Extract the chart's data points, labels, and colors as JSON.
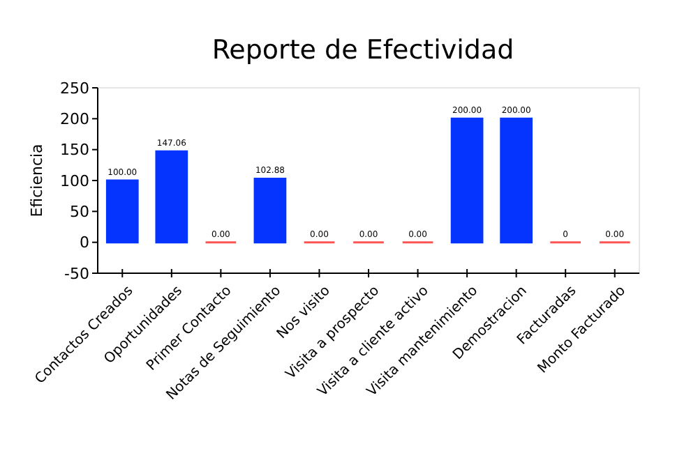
{
  "chart_data": {
    "type": "bar",
    "title": "Reporte de Efectividad",
    "ylabel": "Eficiencia",
    "categories": [
      "Contactos Creados",
      "Oportunidades",
      "Primer Contacto",
      "Notas de Seguimiento",
      "Nos visito",
      "Visita a prospecto",
      "Visita a cliente activo",
      "Visita mantenimiento",
      "Demostracion",
      "Facturadas",
      "Monto Facturado"
    ],
    "values": [
      100,
      147.06,
      0,
      102.88,
      0,
      0,
      0,
      200,
      200,
      0,
      0
    ],
    "colors": [
      "#0533ff",
      "#0533ff",
      "#ff5555",
      "#0533ff",
      "#ff5555",
      "#ff5555",
      "#ff5555",
      "#0533ff",
      "#0533ff",
      "#ff5555",
      "#ff5555"
    ],
    "value_labels": [
      "100.00",
      "147.06",
      "0.00",
      "102.88",
      "0.00",
      "0.00",
      "0.00",
      "200.00",
      "200.00",
      "0",
      "0.00"
    ],
    "ylim": [
      -50,
      250
    ],
    "yticks": [
      -50,
      0,
      50,
      100,
      150,
      200,
      250
    ],
    "grid": false
  }
}
